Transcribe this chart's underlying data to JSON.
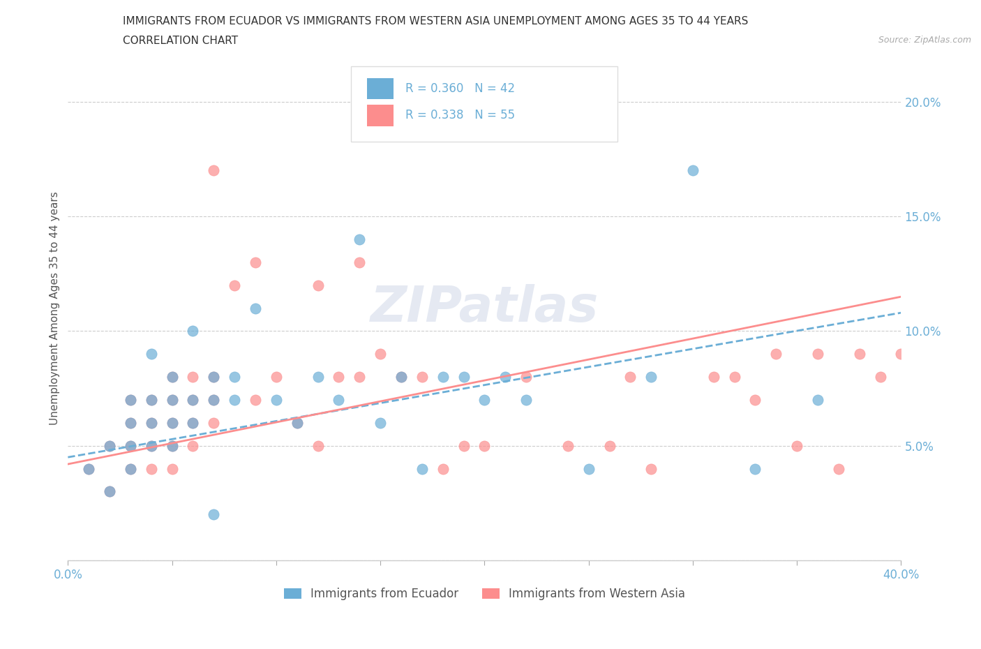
{
  "title_line1": "IMMIGRANTS FROM ECUADOR VS IMMIGRANTS FROM WESTERN ASIA UNEMPLOYMENT AMONG AGES 35 TO 44 YEARS",
  "title_line2": "CORRELATION CHART",
  "source_text": "Source: ZipAtlas.com",
  "ylabel": "Unemployment Among Ages 35 to 44 years",
  "xlim": [
    0.0,
    0.4
  ],
  "ylim": [
    0.0,
    0.22
  ],
  "xticks": [
    0.0,
    0.05,
    0.1,
    0.15,
    0.2,
    0.25,
    0.3,
    0.35,
    0.4
  ],
  "xtick_labels": [
    "0.0%",
    "",
    "",
    "",
    "",
    "",
    "",
    "",
    "40.0%"
  ],
  "yticks": [
    0.0,
    0.05,
    0.1,
    0.15,
    0.2
  ],
  "ytick_labels": [
    "",
    "5.0%",
    "10.0%",
    "15.0%",
    "20.0%"
  ],
  "ecuador_color": "#6baed6",
  "western_asia_color": "#fc8d8d",
  "ecuador_R": 0.36,
  "ecuador_N": 42,
  "western_asia_R": 0.338,
  "western_asia_N": 55,
  "ecuador_label": "Immigrants from Ecuador",
  "western_asia_label": "Immigrants from Western Asia",
  "background_color": "#ffffff",
  "grid_color": "#cccccc",
  "axis_color": "#6baed6",
  "text_color": "#333333",
  "source_color": "#aaaaaa",
  "ecuador_scatter_x": [
    0.01,
    0.02,
    0.02,
    0.03,
    0.03,
    0.03,
    0.03,
    0.04,
    0.04,
    0.04,
    0.04,
    0.05,
    0.05,
    0.05,
    0.05,
    0.06,
    0.06,
    0.06,
    0.07,
    0.07,
    0.07,
    0.08,
    0.08,
    0.09,
    0.1,
    0.11,
    0.12,
    0.13,
    0.14,
    0.15,
    0.16,
    0.17,
    0.18,
    0.19,
    0.2,
    0.21,
    0.22,
    0.25,
    0.28,
    0.3,
    0.33,
    0.36
  ],
  "ecuador_scatter_y": [
    0.04,
    0.03,
    0.05,
    0.04,
    0.05,
    0.06,
    0.07,
    0.05,
    0.06,
    0.07,
    0.09,
    0.05,
    0.06,
    0.07,
    0.08,
    0.06,
    0.07,
    0.1,
    0.07,
    0.08,
    0.02,
    0.08,
    0.07,
    0.11,
    0.07,
    0.06,
    0.08,
    0.07,
    0.14,
    0.06,
    0.08,
    0.04,
    0.08,
    0.08,
    0.07,
    0.08,
    0.07,
    0.04,
    0.08,
    0.17,
    0.04,
    0.07
  ],
  "western_asia_scatter_x": [
    0.01,
    0.02,
    0.02,
    0.03,
    0.03,
    0.03,
    0.03,
    0.04,
    0.04,
    0.04,
    0.04,
    0.05,
    0.05,
    0.05,
    0.05,
    0.05,
    0.06,
    0.06,
    0.06,
    0.06,
    0.07,
    0.07,
    0.07,
    0.07,
    0.08,
    0.09,
    0.09,
    0.1,
    0.11,
    0.12,
    0.12,
    0.13,
    0.14,
    0.14,
    0.15,
    0.16,
    0.17,
    0.18,
    0.19,
    0.2,
    0.22,
    0.24,
    0.26,
    0.27,
    0.28,
    0.31,
    0.32,
    0.33,
    0.34,
    0.35,
    0.36,
    0.37,
    0.38,
    0.39,
    0.4
  ],
  "western_asia_scatter_y": [
    0.04,
    0.03,
    0.05,
    0.04,
    0.05,
    0.06,
    0.07,
    0.04,
    0.05,
    0.06,
    0.07,
    0.04,
    0.05,
    0.06,
    0.07,
    0.08,
    0.05,
    0.06,
    0.07,
    0.08,
    0.06,
    0.07,
    0.08,
    0.17,
    0.12,
    0.07,
    0.13,
    0.08,
    0.06,
    0.05,
    0.12,
    0.08,
    0.08,
    0.13,
    0.09,
    0.08,
    0.08,
    0.04,
    0.05,
    0.05,
    0.08,
    0.05,
    0.05,
    0.08,
    0.04,
    0.08,
    0.08,
    0.07,
    0.09,
    0.05,
    0.09,
    0.04,
    0.09,
    0.08,
    0.09
  ],
  "ecuador_trend_y_start": 0.045,
  "ecuador_trend_y_end": 0.108,
  "western_asia_trend_y_start": 0.042,
  "western_asia_trend_y_end": 0.115
}
